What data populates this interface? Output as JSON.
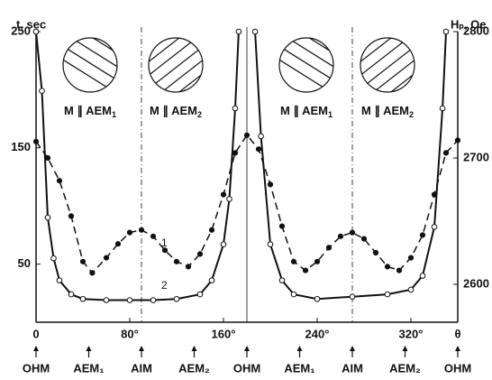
{
  "chart_data": {
    "type": "line",
    "y_label": "t, sec",
    "y2_label": "Hₚ, Oe",
    "x_label": "θ",
    "xlim": [
      0,
      360
    ],
    "xticks": [
      0,
      {
        "value": 80,
        "label": "80°"
      },
      {
        "value": 160,
        "label": "160°"
      },
      {
        "value": 240,
        "label": "240°"
      },
      {
        "value": 320,
        "label": "320°"
      }
    ],
    "ylim": [
      0,
      250
    ],
    "yticks": [
      50,
      150,
      250
    ],
    "y2lim": [
      2570,
      2800
    ],
    "y2ticks": [
      2600,
      2700,
      2800
    ],
    "vlines": [
      90,
      180,
      270
    ],
    "series": [
      {
        "name": "1",
        "color": "#111",
        "axis": "y2",
        "dashed": true,
        "marker": "filled",
        "x": [
          0,
          10,
          20,
          30,
          40,
          48,
          60,
          70,
          80,
          90,
          100,
          110,
          120,
          130,
          140,
          150,
          160,
          170,
          180,
          190,
          200,
          210,
          220,
          230,
          240,
          250,
          260,
          270,
          280,
          290,
          300,
          310,
          320,
          330,
          340,
          350,
          360
        ],
        "values": [
          2713,
          2700,
          2682,
          2654,
          2618,
          2609,
          2621,
          2632,
          2641,
          2643,
          2638,
          2627,
          2618,
          2614,
          2624,
          2643,
          2671,
          2704,
          2718,
          2707,
          2679,
          2646,
          2618,
          2611,
          2618,
          2629,
          2638,
          2641,
          2636,
          2625,
          2614,
          2611,
          2621,
          2639,
          2671,
          2704,
          2714
        ]
      },
      {
        "name": "2",
        "color": "#111",
        "axis": "y",
        "dashed": false,
        "marker": "open",
        "x": [
          0,
          5,
          10,
          15,
          20,
          30,
          40,
          60,
          80,
          100,
          120,
          140,
          150,
          160,
          165,
          170,
          173,
          180,
          187,
          192,
          200,
          210,
          220,
          240,
          270,
          300,
          320,
          330,
          340,
          347,
          350
        ],
        "values": [
          250,
          199,
          90,
          55,
          36,
          24,
          20,
          19,
          19,
          19,
          20,
          24,
          36,
          67,
          106,
          184,
          250,
          null,
          250,
          160,
          67,
          36,
          24,
          20,
          22,
          24,
          28,
          40,
          82,
          184,
          250
        ]
      }
    ],
    "panels": [
      {
        "text": "M ∥ AEM",
        "sub": "1"
      },
      {
        "text": "M ∥ AEM",
        "sub": "2"
      },
      {
        "text": "M ∥ AEM",
        "sub": "1"
      },
      {
        "text": "M ∥ AEM",
        "sub": "2"
      }
    ],
    "positions": [
      {
        "x": 0,
        "label": "OHM"
      },
      {
        "x": 45,
        "label": "AEM₁"
      },
      {
        "x": 90,
        "label": "AIM"
      },
      {
        "x": 135,
        "label": "AEM₂"
      },
      {
        "x": 180,
        "label": "OHM"
      },
      {
        "x": 225,
        "label": "AEM₁"
      },
      {
        "x": 270,
        "label": "AIM"
      },
      {
        "x": 315,
        "label": "AEM₂"
      },
      {
        "x": 360,
        "label": "OHM"
      }
    ]
  }
}
